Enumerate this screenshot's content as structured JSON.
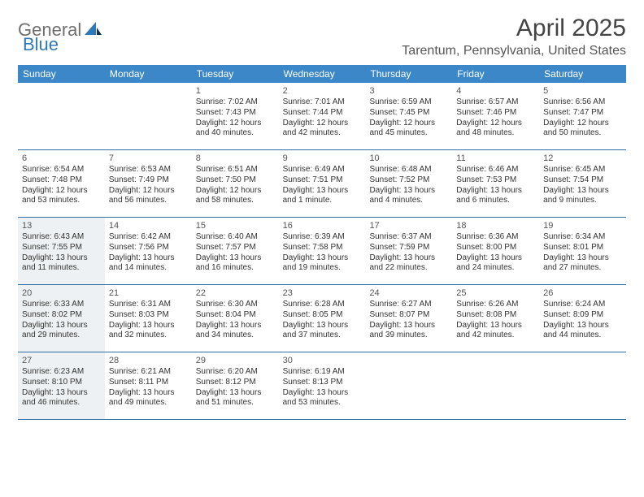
{
  "logo": {
    "part1": "General",
    "part2": "Blue"
  },
  "title": "April 2025",
  "location": "Tarentum, Pennsylvania, United States",
  "colors": {
    "header_bg": "#3b87c8",
    "header_text": "#ffffff",
    "row_border": "#2f6ea5",
    "shaded_bg": "#eef1f3",
    "logo_gray": "#6f6f6f",
    "logo_blue": "#2f78b7"
  },
  "weekdays": [
    "Sunday",
    "Monday",
    "Tuesday",
    "Wednesday",
    "Thursday",
    "Friday",
    "Saturday"
  ],
  "weeks": [
    [
      {
        "day": "",
        "sunrise": "",
        "sunset": "",
        "daylight1": "",
        "daylight2": ""
      },
      {
        "day": "",
        "sunrise": "",
        "sunset": "",
        "daylight1": "",
        "daylight2": ""
      },
      {
        "day": "1",
        "sunrise": "Sunrise: 7:02 AM",
        "sunset": "Sunset: 7:43 PM",
        "daylight1": "Daylight: 12 hours",
        "daylight2": "and 40 minutes."
      },
      {
        "day": "2",
        "sunrise": "Sunrise: 7:01 AM",
        "sunset": "Sunset: 7:44 PM",
        "daylight1": "Daylight: 12 hours",
        "daylight2": "and 42 minutes."
      },
      {
        "day": "3",
        "sunrise": "Sunrise: 6:59 AM",
        "sunset": "Sunset: 7:45 PM",
        "daylight1": "Daylight: 12 hours",
        "daylight2": "and 45 minutes."
      },
      {
        "day": "4",
        "sunrise": "Sunrise: 6:57 AM",
        "sunset": "Sunset: 7:46 PM",
        "daylight1": "Daylight: 12 hours",
        "daylight2": "and 48 minutes."
      },
      {
        "day": "5",
        "sunrise": "Sunrise: 6:56 AM",
        "sunset": "Sunset: 7:47 PM",
        "daylight1": "Daylight: 12 hours",
        "daylight2": "and 50 minutes."
      }
    ],
    [
      {
        "day": "6",
        "sunrise": "Sunrise: 6:54 AM",
        "sunset": "Sunset: 7:48 PM",
        "daylight1": "Daylight: 12 hours",
        "daylight2": "and 53 minutes."
      },
      {
        "day": "7",
        "sunrise": "Sunrise: 6:53 AM",
        "sunset": "Sunset: 7:49 PM",
        "daylight1": "Daylight: 12 hours",
        "daylight2": "and 56 minutes."
      },
      {
        "day": "8",
        "sunrise": "Sunrise: 6:51 AM",
        "sunset": "Sunset: 7:50 PM",
        "daylight1": "Daylight: 12 hours",
        "daylight2": "and 58 minutes."
      },
      {
        "day": "9",
        "sunrise": "Sunrise: 6:49 AM",
        "sunset": "Sunset: 7:51 PM",
        "daylight1": "Daylight: 13 hours",
        "daylight2": "and 1 minute."
      },
      {
        "day": "10",
        "sunrise": "Sunrise: 6:48 AM",
        "sunset": "Sunset: 7:52 PM",
        "daylight1": "Daylight: 13 hours",
        "daylight2": "and 4 minutes."
      },
      {
        "day": "11",
        "sunrise": "Sunrise: 6:46 AM",
        "sunset": "Sunset: 7:53 PM",
        "daylight1": "Daylight: 13 hours",
        "daylight2": "and 6 minutes."
      },
      {
        "day": "12",
        "sunrise": "Sunrise: 6:45 AM",
        "sunset": "Sunset: 7:54 PM",
        "daylight1": "Daylight: 13 hours",
        "daylight2": "and 9 minutes."
      }
    ],
    [
      {
        "day": "13",
        "sunrise": "Sunrise: 6:43 AM",
        "sunset": "Sunset: 7:55 PM",
        "daylight1": "Daylight: 13 hours",
        "daylight2": "and 11 minutes.",
        "shaded": true
      },
      {
        "day": "14",
        "sunrise": "Sunrise: 6:42 AM",
        "sunset": "Sunset: 7:56 PM",
        "daylight1": "Daylight: 13 hours",
        "daylight2": "and 14 minutes."
      },
      {
        "day": "15",
        "sunrise": "Sunrise: 6:40 AM",
        "sunset": "Sunset: 7:57 PM",
        "daylight1": "Daylight: 13 hours",
        "daylight2": "and 16 minutes."
      },
      {
        "day": "16",
        "sunrise": "Sunrise: 6:39 AM",
        "sunset": "Sunset: 7:58 PM",
        "daylight1": "Daylight: 13 hours",
        "daylight2": "and 19 minutes."
      },
      {
        "day": "17",
        "sunrise": "Sunrise: 6:37 AM",
        "sunset": "Sunset: 7:59 PM",
        "daylight1": "Daylight: 13 hours",
        "daylight2": "and 22 minutes."
      },
      {
        "day": "18",
        "sunrise": "Sunrise: 6:36 AM",
        "sunset": "Sunset: 8:00 PM",
        "daylight1": "Daylight: 13 hours",
        "daylight2": "and 24 minutes."
      },
      {
        "day": "19",
        "sunrise": "Sunrise: 6:34 AM",
        "sunset": "Sunset: 8:01 PM",
        "daylight1": "Daylight: 13 hours",
        "daylight2": "and 27 minutes."
      }
    ],
    [
      {
        "day": "20",
        "sunrise": "Sunrise: 6:33 AM",
        "sunset": "Sunset: 8:02 PM",
        "daylight1": "Daylight: 13 hours",
        "daylight2": "and 29 minutes.",
        "shaded": true
      },
      {
        "day": "21",
        "sunrise": "Sunrise: 6:31 AM",
        "sunset": "Sunset: 8:03 PM",
        "daylight1": "Daylight: 13 hours",
        "daylight2": "and 32 minutes."
      },
      {
        "day": "22",
        "sunrise": "Sunrise: 6:30 AM",
        "sunset": "Sunset: 8:04 PM",
        "daylight1": "Daylight: 13 hours",
        "daylight2": "and 34 minutes."
      },
      {
        "day": "23",
        "sunrise": "Sunrise: 6:28 AM",
        "sunset": "Sunset: 8:05 PM",
        "daylight1": "Daylight: 13 hours",
        "daylight2": "and 37 minutes."
      },
      {
        "day": "24",
        "sunrise": "Sunrise: 6:27 AM",
        "sunset": "Sunset: 8:07 PM",
        "daylight1": "Daylight: 13 hours",
        "daylight2": "and 39 minutes."
      },
      {
        "day": "25",
        "sunrise": "Sunrise: 6:26 AM",
        "sunset": "Sunset: 8:08 PM",
        "daylight1": "Daylight: 13 hours",
        "daylight2": "and 42 minutes."
      },
      {
        "day": "26",
        "sunrise": "Sunrise: 6:24 AM",
        "sunset": "Sunset: 8:09 PM",
        "daylight1": "Daylight: 13 hours",
        "daylight2": "and 44 minutes."
      }
    ],
    [
      {
        "day": "27",
        "sunrise": "Sunrise: 6:23 AM",
        "sunset": "Sunset: 8:10 PM",
        "daylight1": "Daylight: 13 hours",
        "daylight2": "and 46 minutes.",
        "shaded": true
      },
      {
        "day": "28",
        "sunrise": "Sunrise: 6:21 AM",
        "sunset": "Sunset: 8:11 PM",
        "daylight1": "Daylight: 13 hours",
        "daylight2": "and 49 minutes."
      },
      {
        "day": "29",
        "sunrise": "Sunrise: 6:20 AM",
        "sunset": "Sunset: 8:12 PM",
        "daylight1": "Daylight: 13 hours",
        "daylight2": "and 51 minutes."
      },
      {
        "day": "30",
        "sunrise": "Sunrise: 6:19 AM",
        "sunset": "Sunset: 8:13 PM",
        "daylight1": "Daylight: 13 hours",
        "daylight2": "and 53 minutes."
      },
      {
        "day": "",
        "sunrise": "",
        "sunset": "",
        "daylight1": "",
        "daylight2": ""
      },
      {
        "day": "",
        "sunrise": "",
        "sunset": "",
        "daylight1": "",
        "daylight2": ""
      },
      {
        "day": "",
        "sunrise": "",
        "sunset": "",
        "daylight1": "",
        "daylight2": ""
      }
    ]
  ]
}
